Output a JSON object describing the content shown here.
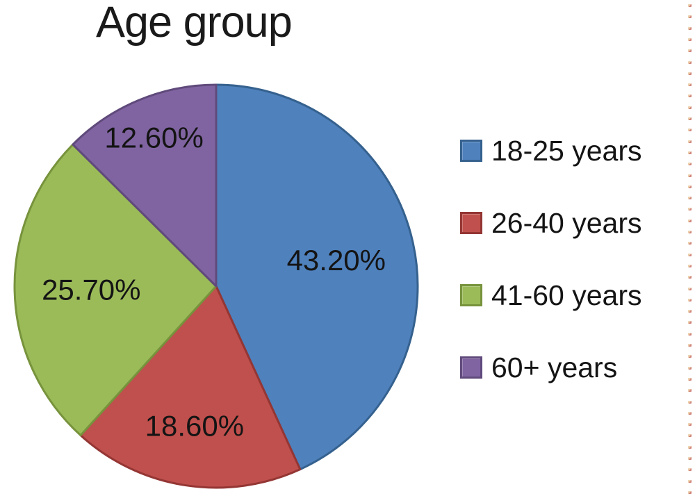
{
  "page": {
    "background": "#ffffff"
  },
  "chart_data": {
    "type": "pie",
    "title": "Age group",
    "categories": [
      "18-25 years",
      "26-40 years",
      "41-60 years",
      "60+ years"
    ],
    "values": [
      43.2,
      18.6,
      25.7,
      12.6
    ],
    "data_labels": [
      "43.20%",
      "18.60%",
      "25.70%",
      "12.60%"
    ],
    "colors": [
      "#4f81bd",
      "#c0504d",
      "#9bbb59",
      "#8064a2"
    ],
    "border_colors": [
      "#35618e",
      "#943634",
      "#77933c",
      "#604a7b"
    ],
    "start_angle_deg": 0,
    "direction": "clockwise",
    "legend_position": "right",
    "data_label_format": "percent, 2 decimals"
  },
  "decoration": {
    "right_edge_mark_color_a": "#e8c9a0",
    "right_edge_mark_color_b": "#c96f62"
  }
}
